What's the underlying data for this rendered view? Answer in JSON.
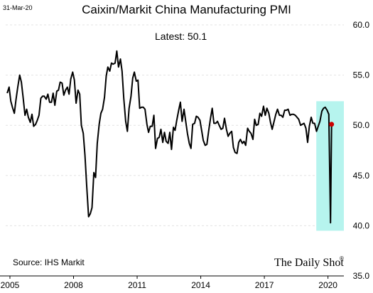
{
  "header": {
    "date": "31-Mar-20",
    "title": "Caixin/Markit China Manufacturing PMI"
  },
  "annotations": {
    "latest": "Latest:  50.1",
    "source": "Source: IHS Markit",
    "watermark": "The Daily Shot",
    "watermark_mark": "®"
  },
  "colors": {
    "line": "#000000",
    "highlight": "#b6f4ee",
    "marker": "#cc0000"
  },
  "chart_data": {
    "type": "line",
    "title": "Caixin/Markit China Manufacturing PMI",
    "xlabel": "",
    "ylabel": "",
    "ylim": [
      35,
      60
    ],
    "xlim": [
      2004.8,
      2020.75
    ],
    "yticks": [
      "35.0",
      "40.0",
      "45.0",
      "50.0",
      "55.0",
      "60.0"
    ],
    "xticks": [
      "2005",
      "2008",
      "2011",
      "2014",
      "2017",
      "2020"
    ],
    "grid": true,
    "y_axis_position": "right",
    "highlight_x_range": [
      2019.45,
      2020.75
    ],
    "highlight_y_range": [
      39.5,
      52.4
    ],
    "latest_point": {
      "x": 2020.17,
      "y": 50.1
    },
    "points": [
      [
        2004.87,
        53.2
      ],
      [
        2004.96,
        53.8
      ],
      [
        2005.04,
        52.4
      ],
      [
        2005.12,
        51.8
      ],
      [
        2005.21,
        51.2
      ],
      [
        2005.29,
        52.6
      ],
      [
        2005.37,
        53.8
      ],
      [
        2005.46,
        55.0
      ],
      [
        2005.54,
        54.3
      ],
      [
        2005.62,
        52.8
      ],
      [
        2005.71,
        51.0
      ],
      [
        2005.79,
        51.6
      ],
      [
        2005.87,
        50.8
      ],
      [
        2005.96,
        50.3
      ],
      [
        2006.04,
        51.1
      ],
      [
        2006.12,
        49.9
      ],
      [
        2006.21,
        50.1
      ],
      [
        2006.29,
        50.5
      ],
      [
        2006.37,
        51.0
      ],
      [
        2006.46,
        52.7
      ],
      [
        2006.54,
        52.9
      ],
      [
        2006.62,
        52.9
      ],
      [
        2006.71,
        52.6
      ],
      [
        2006.79,
        53.1
      ],
      [
        2006.87,
        52.3
      ],
      [
        2006.96,
        52.3
      ],
      [
        2007.04,
        53.2
      ],
      [
        2007.12,
        52.0
      ],
      [
        2007.21,
        53.4
      ],
      [
        2007.29,
        53.5
      ],
      [
        2007.37,
        54.3
      ],
      [
        2007.46,
        54.2
      ],
      [
        2007.54,
        53.0
      ],
      [
        2007.62,
        53.5
      ],
      [
        2007.71,
        53.8
      ],
      [
        2007.79,
        53.1
      ],
      [
        2007.87,
        54.6
      ],
      [
        2007.96,
        55.3
      ],
      [
        2008.04,
        54.5
      ],
      [
        2008.12,
        52.2
      ],
      [
        2008.21,
        53.5
      ],
      [
        2008.29,
        53.1
      ],
      [
        2008.37,
        50.0
      ],
      [
        2008.46,
        49.2
      ],
      [
        2008.54,
        47.0
      ],
      [
        2008.62,
        44.0
      ],
      [
        2008.71,
        40.9
      ],
      [
        2008.79,
        41.2
      ],
      [
        2008.87,
        41.8
      ],
      [
        2008.96,
        45.3
      ],
      [
        2009.04,
        44.8
      ],
      [
        2009.12,
        48.2
      ],
      [
        2009.21,
        50.1
      ],
      [
        2009.29,
        51.2
      ],
      [
        2009.37,
        51.6
      ],
      [
        2009.46,
        52.8
      ],
      [
        2009.54,
        54.9
      ],
      [
        2009.62,
        55.8
      ],
      [
        2009.71,
        55.4
      ],
      [
        2009.79,
        56.2
      ],
      [
        2009.87,
        56.1
      ],
      [
        2009.96,
        56.2
      ],
      [
        2010.04,
        57.4
      ],
      [
        2010.12,
        55.8
      ],
      [
        2010.21,
        56.6
      ],
      [
        2010.29,
        55.4
      ],
      [
        2010.37,
        52.7
      ],
      [
        2010.46,
        50.4
      ],
      [
        2010.54,
        49.4
      ],
      [
        2010.62,
        51.7
      ],
      [
        2010.71,
        52.9
      ],
      [
        2010.79,
        54.7
      ],
      [
        2010.87,
        55.3
      ],
      [
        2010.96,
        54.4
      ],
      [
        2011.04,
        54.5
      ],
      [
        2011.12,
        51.7
      ],
      [
        2011.21,
        51.8
      ],
      [
        2011.29,
        51.8
      ],
      [
        2011.37,
        51.6
      ],
      [
        2011.46,
        50.1
      ],
      [
        2011.54,
        49.3
      ],
      [
        2011.62,
        49.9
      ],
      [
        2011.71,
        49.9
      ],
      [
        2011.79,
        51.0
      ],
      [
        2011.87,
        47.7
      ],
      [
        2011.96,
        48.7
      ],
      [
        2012.04,
        48.8
      ],
      [
        2012.12,
        49.6
      ],
      [
        2012.21,
        48.3
      ],
      [
        2012.29,
        49.3
      ],
      [
        2012.37,
        48.4
      ],
      [
        2012.46,
        48.2
      ],
      [
        2012.54,
        49.3
      ],
      [
        2012.62,
        47.6
      ],
      [
        2012.71,
        49.8
      ],
      [
        2012.79,
        49.5
      ],
      [
        2012.87,
        50.5
      ],
      [
        2012.96,
        51.5
      ],
      [
        2013.04,
        52.3
      ],
      [
        2013.12,
        50.4
      ],
      [
        2013.21,
        51.6
      ],
      [
        2013.29,
        50.4
      ],
      [
        2013.37,
        49.2
      ],
      [
        2013.46,
        48.2
      ],
      [
        2013.54,
        47.7
      ],
      [
        2013.62,
        50.1
      ],
      [
        2013.71,
        50.2
      ],
      [
        2013.79,
        50.9
      ],
      [
        2013.87,
        50.8
      ],
      [
        2013.96,
        50.5
      ],
      [
        2014.04,
        49.5
      ],
      [
        2014.12,
        48.5
      ],
      [
        2014.21,
        48.0
      ],
      [
        2014.29,
        48.1
      ],
      [
        2014.37,
        49.4
      ],
      [
        2014.46,
        50.7
      ],
      [
        2014.54,
        51.7
      ],
      [
        2014.62,
        50.2
      ],
      [
        2014.71,
        50.2
      ],
      [
        2014.79,
        50.4
      ],
      [
        2014.87,
        50.0
      ],
      [
        2014.96,
        49.6
      ],
      [
        2015.04,
        49.7
      ],
      [
        2015.12,
        50.7
      ],
      [
        2015.21,
        49.6
      ],
      [
        2015.29,
        48.9
      ],
      [
        2015.37,
        49.2
      ],
      [
        2015.46,
        49.4
      ],
      [
        2015.54,
        47.8
      ],
      [
        2015.62,
        47.3
      ],
      [
        2015.71,
        47.2
      ],
      [
        2015.79,
        48.3
      ],
      [
        2015.87,
        48.6
      ],
      [
        2015.96,
        48.2
      ],
      [
        2016.04,
        48.4
      ],
      [
        2016.12,
        48.0
      ],
      [
        2016.21,
        49.7
      ],
      [
        2016.29,
        49.4
      ],
      [
        2016.37,
        49.2
      ],
      [
        2016.46,
        48.6
      ],
      [
        2016.54,
        50.6
      ],
      [
        2016.62,
        50.0
      ],
      [
        2016.71,
        50.1
      ],
      [
        2016.79,
        51.2
      ],
      [
        2016.87,
        50.9
      ],
      [
        2016.96,
        51.9
      ],
      [
        2017.04,
        51.0
      ],
      [
        2017.12,
        51.7
      ],
      [
        2017.21,
        51.2
      ],
      [
        2017.29,
        50.3
      ],
      [
        2017.37,
        49.6
      ],
      [
        2017.46,
        50.4
      ],
      [
        2017.54,
        51.1
      ],
      [
        2017.62,
        51.6
      ],
      [
        2017.71,
        51.0
      ],
      [
        2017.79,
        51.0
      ],
      [
        2017.87,
        50.8
      ],
      [
        2017.96,
        51.5
      ],
      [
        2018.04,
        51.5
      ],
      [
        2018.12,
        51.6
      ],
      [
        2018.21,
        51.0
      ],
      [
        2018.29,
        51.1
      ],
      [
        2018.37,
        51.1
      ],
      [
        2018.46,
        51.0
      ],
      [
        2018.54,
        50.8
      ],
      [
        2018.62,
        50.6
      ],
      [
        2018.71,
        50.0
      ],
      [
        2018.79,
        50.1
      ],
      [
        2018.87,
        50.2
      ],
      [
        2018.96,
        49.7
      ],
      [
        2019.04,
        48.3
      ],
      [
        2019.12,
        49.9
      ],
      [
        2019.21,
        50.8
      ],
      [
        2019.29,
        50.2
      ],
      [
        2019.37,
        50.2
      ],
      [
        2019.46,
        49.4
      ],
      [
        2019.54,
        49.9
      ],
      [
        2019.62,
        50.4
      ],
      [
        2019.71,
        51.4
      ],
      [
        2019.79,
        51.7
      ],
      [
        2019.87,
        51.8
      ],
      [
        2019.96,
        51.5
      ],
      [
        2020.04,
        51.1
      ],
      [
        2020.12,
        40.3
      ],
      [
        2020.17,
        50.1
      ]
    ]
  }
}
